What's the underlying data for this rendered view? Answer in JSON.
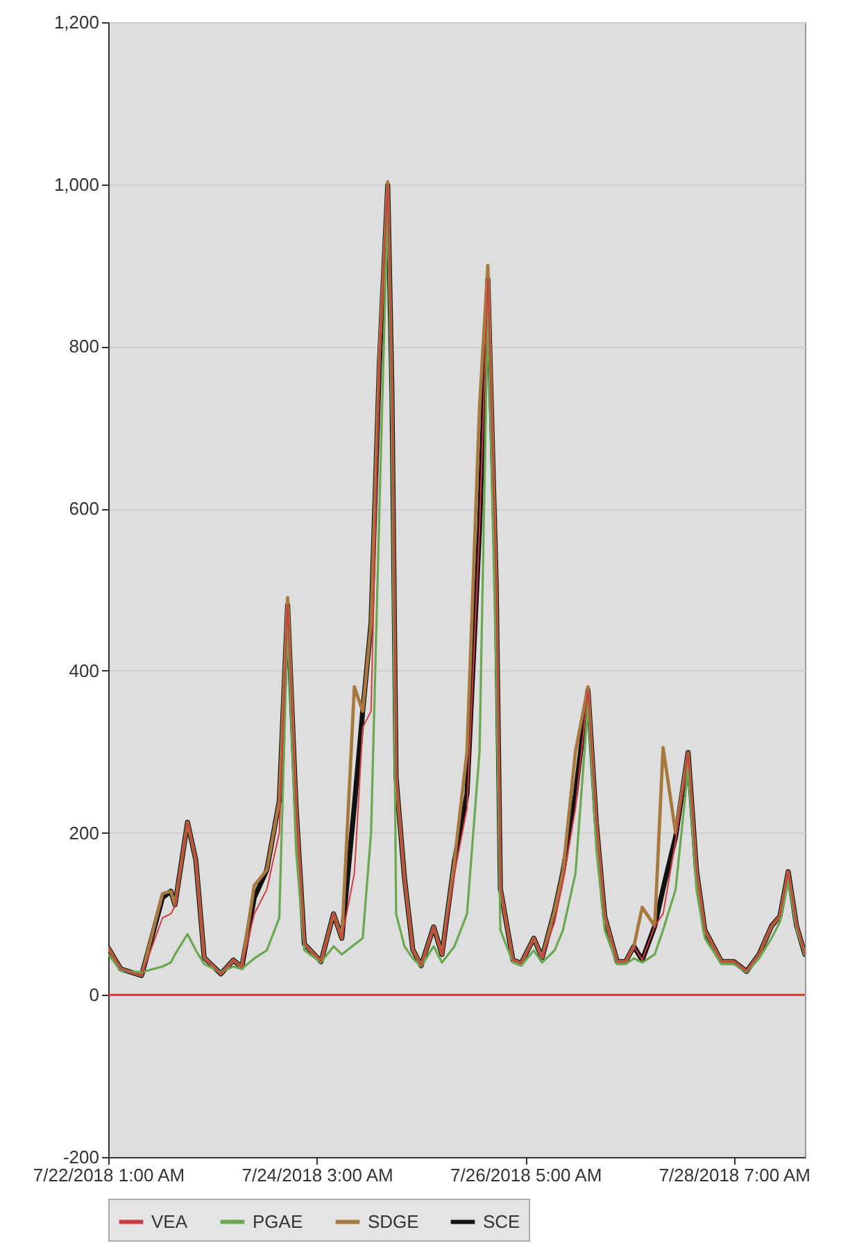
{
  "chart_data": {
    "type": "line",
    "x": [
      "2018-07-22T01:00",
      "2018-07-22T04:00",
      "2018-07-22T09:00",
      "2018-07-22T14:00",
      "2018-07-22T16:00",
      "2018-07-22T17:00",
      "2018-07-22T20:00",
      "2018-07-22T22:00",
      "2018-07-23T00:00",
      "2018-07-23T04:00",
      "2018-07-23T07:00",
      "2018-07-23T09:00",
      "2018-07-23T12:00",
      "2018-07-23T15:00",
      "2018-07-23T18:00",
      "2018-07-23T20:00",
      "2018-07-23T22:00",
      "2018-07-24T00:00",
      "2018-07-24T04:00",
      "2018-07-24T07:00",
      "2018-07-24T09:00",
      "2018-07-24T12:00",
      "2018-07-24T14:00",
      "2018-07-24T16:00",
      "2018-07-24T18:00",
      "2018-07-24T20:00",
      "2018-07-24T21:00",
      "2018-07-24T22:00",
      "2018-07-25T00:00",
      "2018-07-25T02:00",
      "2018-07-25T04:00",
      "2018-07-25T07:00",
      "2018-07-25T09:00",
      "2018-07-25T12:00",
      "2018-07-25T15:00",
      "2018-07-25T18:00",
      "2018-07-25T20:00",
      "2018-07-25T22:00",
      "2018-07-25T23:00",
      "2018-07-26T02:00",
      "2018-07-26T04:00",
      "2018-07-26T07:00",
      "2018-07-26T09:00",
      "2018-07-26T12:00",
      "2018-07-26T14:00",
      "2018-07-26T17:00",
      "2018-07-26T20:00",
      "2018-07-26T22:00",
      "2018-07-27T00:00",
      "2018-07-27T03:00",
      "2018-07-27T05:00",
      "2018-07-27T07:00",
      "2018-07-27T09:00",
      "2018-07-27T12:00",
      "2018-07-27T14:00",
      "2018-07-27T17:00",
      "2018-07-27T20:00",
      "2018-07-27T22:00",
      "2018-07-28T00:00",
      "2018-07-28T04:00",
      "2018-07-28T07:00",
      "2018-07-28T10:00",
      "2018-07-28T13:00",
      "2018-07-28T16:00",
      "2018-07-28T18:00",
      "2018-07-28T20:00",
      "2018-07-28T22:00",
      "2018-07-29T00:00"
    ],
    "series": [
      {
        "name": "VEA",
        "color": "#d13b40",
        "values": [
          58,
          32,
          24,
          95,
          100,
          110,
          213,
          166,
          46,
          26,
          43,
          34,
          100,
          130,
          200,
          481,
          234,
          63,
          41,
          100,
          70,
          150,
          330,
          350,
          780,
          999,
          746,
          268,
          145,
          56,
          36,
          84,
          50,
          150,
          230,
          575,
          883,
          507,
          131,
          43,
          39,
          70,
          46,
          90,
          140,
          230,
          376,
          212,
          97,
          41,
          41,
          60,
          43,
          85,
          100,
          190,
          299,
          154,
          80,
          41,
          41,
          29,
          50,
          85,
          97,
          152,
          85,
          50
        ]
      },
      {
        "name": "PGAE",
        "color": "#6aa84f",
        "values": [
          50,
          30,
          28,
          35,
          40,
          50,
          75,
          55,
          38,
          28,
          35,
          32,
          45,
          55,
          95,
          460,
          180,
          55,
          40,
          60,
          50,
          62,
          70,
          200,
          600,
          980,
          700,
          100,
          60,
          45,
          35,
          60,
          40,
          60,
          100,
          300,
          850,
          400,
          80,
          40,
          36,
          55,
          40,
          55,
          80,
          150,
          360,
          180,
          80,
          38,
          38,
          45,
          40,
          50,
          80,
          130,
          280,
          130,
          70,
          38,
          38,
          28,
          45,
          70,
          90,
          140,
          80,
          50
        ]
      },
      {
        "name": "SDGE",
        "color": "#a8793f",
        "values": [
          58,
          32,
          24,
          125,
          128,
          111,
          213,
          166,
          46,
          26,
          43,
          34,
          135,
          154,
          239,
          490,
          234,
          63,
          41,
          100,
          70,
          380,
          350,
          459,
          790,
          1003,
          746,
          268,
          145,
          56,
          36,
          84,
          50,
          166,
          300,
          725,
          900,
          507,
          131,
          43,
          39,
          70,
          46,
          104,
          152,
          300,
          380,
          212,
          97,
          41,
          41,
          60,
          108,
          85,
          305,
          200,
          299,
          154,
          80,
          41,
          41,
          29,
          50,
          85,
          97,
          152,
          85,
          50
        ]
      },
      {
        "name": "SCE",
        "color": "#111111",
        "values": [
          58,
          32,
          24,
          120,
          128,
          111,
          213,
          166,
          46,
          26,
          43,
          34,
          120,
          154,
          239,
          481,
          234,
          63,
          41,
          100,
          70,
          234,
          350,
          459,
          780,
          999,
          746,
          268,
          145,
          56,
          36,
          84,
          50,
          166,
          248,
          575,
          883,
          507,
          131,
          43,
          39,
          70,
          46,
          104,
          152,
          248,
          376,
          212,
          97,
          41,
          41,
          60,
          43,
          85,
          131,
          195,
          299,
          154,
          80,
          41,
          41,
          29,
          50,
          85,
          97,
          152,
          85,
          50
        ]
      }
    ],
    "xlim": [
      "2018-07-22T01:00",
      "2018-07-29T00:00"
    ],
    "xticks": [
      {
        "value": "2018-07-22T01:00",
        "label": "7/22/2018 1:00 AM"
      },
      {
        "value": "2018-07-24T03:00",
        "label": "7/24/2018 3:00 AM"
      },
      {
        "value": "2018-07-26T05:00",
        "label": "7/26/2018 5:00 AM"
      },
      {
        "value": "2018-07-28T07:00",
        "label": "7/28/2018 7:00 AM"
      }
    ],
    "ylim": [
      -200,
      1200
    ],
    "yticks": [
      -200,
      0,
      200,
      400,
      600,
      800,
      {
        "value": 1000,
        "label": "1,000"
      },
      {
        "value": 1200,
        "label": "1,200"
      }
    ],
    "ref_lines": [
      {
        "axis": "y",
        "value": 0,
        "color": "#e8302a"
      }
    ],
    "grid": "y",
    "legend": "bottom"
  }
}
